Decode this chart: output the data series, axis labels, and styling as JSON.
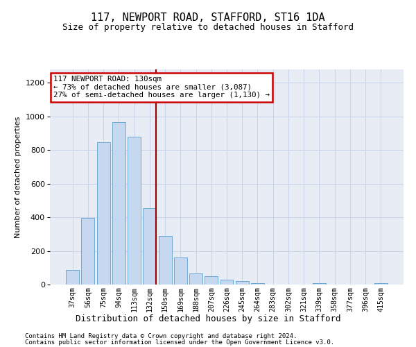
{
  "title": "117, NEWPORT ROAD, STAFFORD, ST16 1DA",
  "subtitle": "Size of property relative to detached houses in Stafford",
  "xlabel": "Distribution of detached houses by size in Stafford",
  "ylabel": "Number of detached properties",
  "categories": [
    "37sqm",
    "56sqm",
    "75sqm",
    "94sqm",
    "113sqm",
    "132sqm",
    "150sqm",
    "169sqm",
    "188sqm",
    "207sqm",
    "226sqm",
    "245sqm",
    "264sqm",
    "283sqm",
    "302sqm",
    "321sqm",
    "339sqm",
    "358sqm",
    "377sqm",
    "396sqm",
    "415sqm"
  ],
  "values": [
    85,
    395,
    845,
    965,
    880,
    455,
    290,
    160,
    65,
    48,
    30,
    20,
    10,
    0,
    0,
    0,
    10,
    0,
    0,
    0,
    10
  ],
  "bar_color": "#c5d8f0",
  "bar_edge_color": "#6aaad4",
  "vline_color": "#990000",
  "annotation_text": "117 NEWPORT ROAD: 130sqm\n← 73% of detached houses are smaller (3,087)\n27% of semi-detached houses are larger (1,130) →",
  "annotation_box_color": "#ffffff",
  "annotation_box_edge": "#cc0000",
  "footnote1": "Contains HM Land Registry data © Crown copyright and database right 2024.",
  "footnote2": "Contains public sector information licensed under the Open Government Licence v3.0.",
  "ylim": [
    0,
    1280
  ],
  "yticks": [
    0,
    200,
    400,
    600,
    800,
    1000,
    1200
  ],
  "background_color": "#ffffff",
  "axes_bg_color": "#e8edf5",
  "grid_color": "#c8d4e8",
  "figsize": [
    6.0,
    5.0
  ],
  "dpi": 100
}
